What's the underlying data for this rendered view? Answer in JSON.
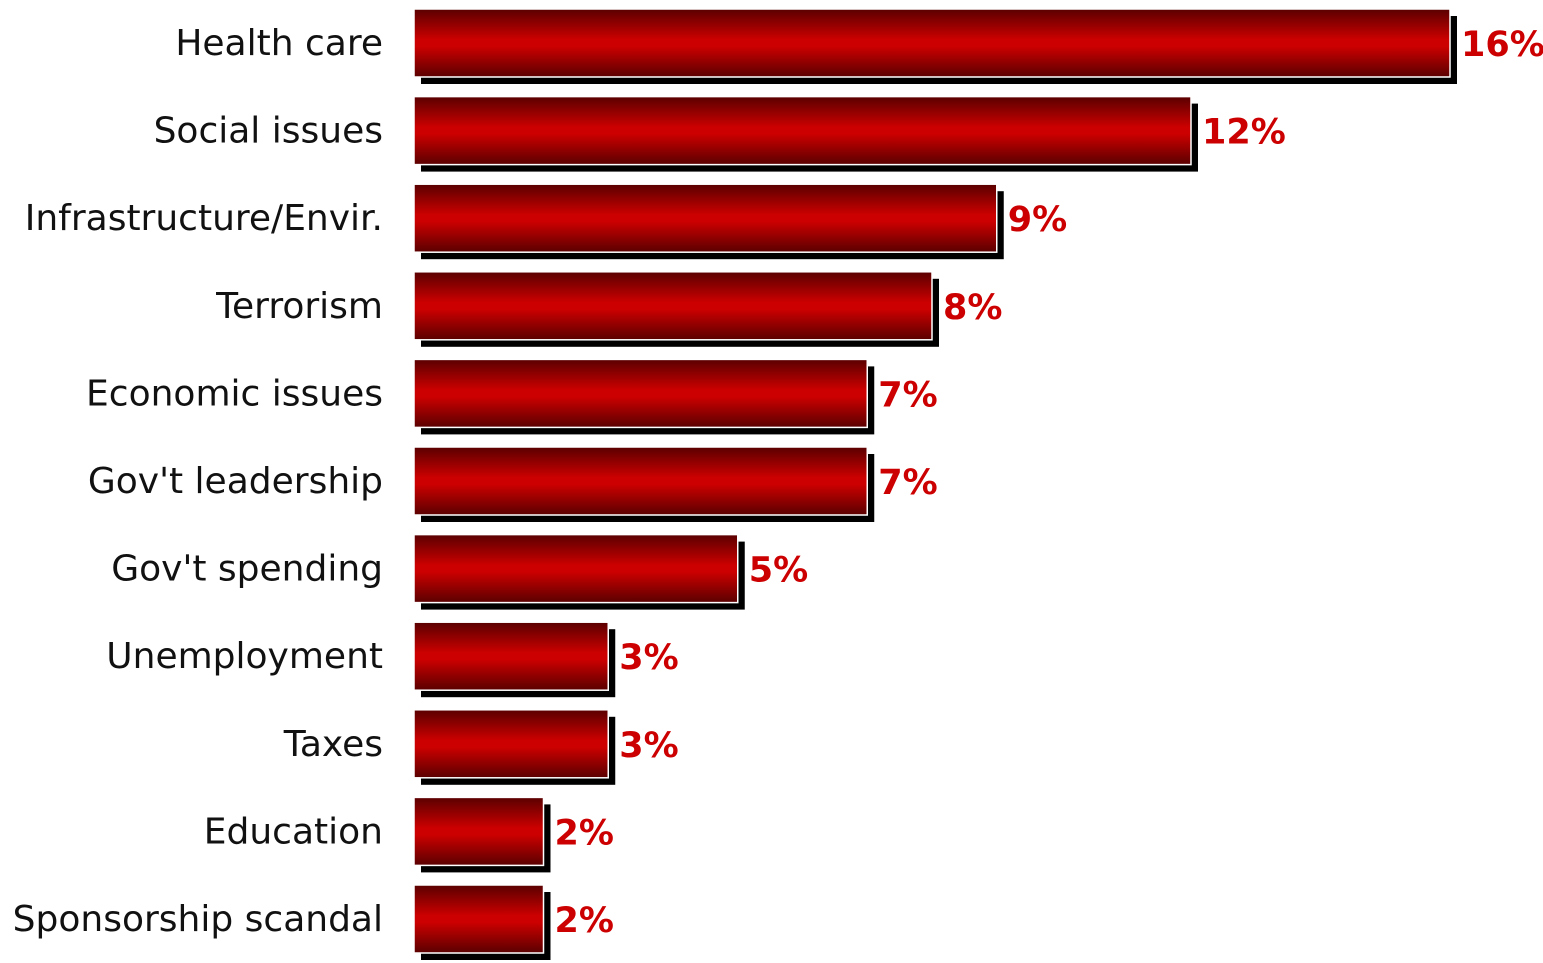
{
  "chart_data": {
    "type": "bar",
    "orientation": "horizontal",
    "categories": [
      "Health care",
      "Social issues",
      "Infrastructure/Envir.",
      "Terrorism",
      "Economic issues",
      "Gov't leadership",
      "Gov't spending",
      "Unemployment",
      "Taxes",
      "Education",
      "Sponsorship scandal"
    ],
    "values": [
      16,
      12,
      9,
      8,
      7,
      7,
      5,
      3,
      3,
      2,
      2
    ],
    "value_labels": [
      "16%",
      "12%",
      "9%",
      "8%",
      "7%",
      "7%",
      "5%",
      "3%",
      "3%",
      "2%",
      "2%"
    ],
    "title": "",
    "xlabel": "",
    "ylabel": "",
    "xlim": [
      0,
      16
    ],
    "grid": false,
    "legend": "none"
  },
  "colors": {
    "bar_center": "#cc0000",
    "bar_edge": "#5a0000",
    "bar_shadow": "#000000",
    "value_text": "#cc0000",
    "category_text": "#111111",
    "background": "#ffffff"
  }
}
